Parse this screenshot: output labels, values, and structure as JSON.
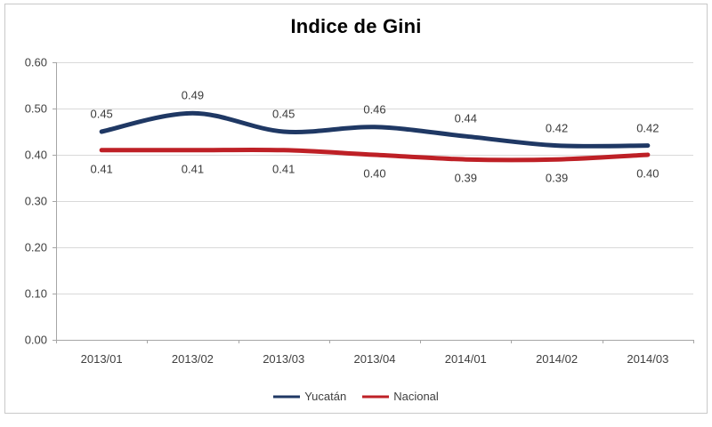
{
  "title": "Indice de Gini",
  "chart_data": {
    "type": "line",
    "title": "Indice de Gini",
    "smoothed": true,
    "categories": [
      "2013/01",
      "2013/02",
      "2013/03",
      "2013/04",
      "2014/01",
      "2014/02",
      "2014/03"
    ],
    "series": [
      {
        "name": "Yucatán",
        "color": "#1F3864",
        "values": [
          0.45,
          0.49,
          0.45,
          0.46,
          0.44,
          0.42,
          0.42
        ],
        "labels": [
          "0.45",
          "0.49",
          "0.45",
          "0.46",
          "0.44",
          "0.42",
          "0.42"
        ],
        "label_position": "above"
      },
      {
        "name": "Nacional",
        "color": "#BE2026",
        "values": [
          0.41,
          0.41,
          0.41,
          0.4,
          0.39,
          0.39,
          0.4
        ],
        "labels": [
          "0.41",
          "0.41",
          "0.41",
          "0.40",
          "0.39",
          "0.39",
          "0.40"
        ],
        "label_position": "below"
      }
    ],
    "ylim": [
      0,
      0.6
    ],
    "ytick_labels": [
      "0.60",
      "0.50",
      "0.40",
      "0.30",
      "0.20",
      "0.10",
      "0.00"
    ],
    "grid": "horizontal",
    "legend_position": "bottom"
  },
  "colors": {
    "grid": "#d9d9d9",
    "axis": "#a6a6a6",
    "axis_text": "#3f3f3f",
    "label_text": "#3a3a3a",
    "title_text": "#000000",
    "frame_border": "#c8c8c8",
    "background": "#ffffff"
  }
}
